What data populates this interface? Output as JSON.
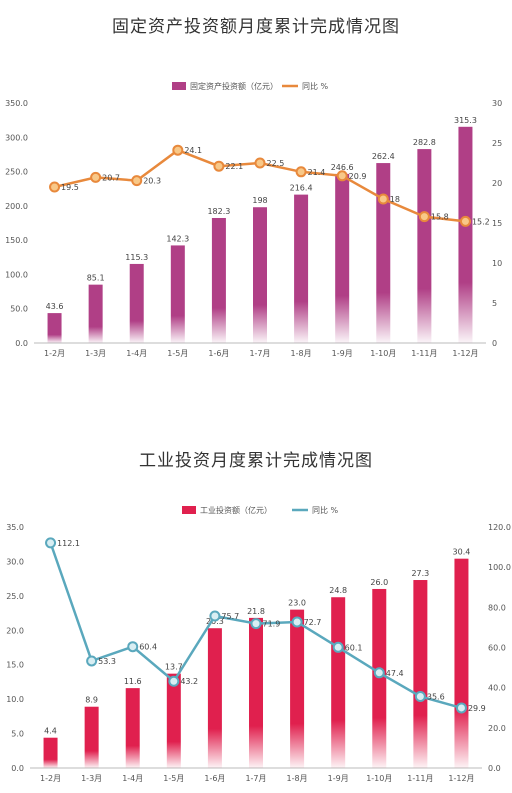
{
  "chart_data": [
    {
      "type": "bar",
      "title": "固定资产投资额月度累计完成情况图",
      "categories": [
        "1-2月",
        "1-3月",
        "1-4月",
        "1-5月",
        "1-6月",
        "1-7月",
        "1-8月",
        "1-9月",
        "1-10月",
        "1-11月",
        "1-12月"
      ],
      "series": [
        {
          "name": "固定资产投资额（亿元）",
          "type": "bar",
          "axis": "left",
          "color": "#b03f86",
          "values": [
            43.6,
            85.1,
            115.3,
            142.3,
            182.3,
            198,
            216.4,
            246.6,
            262.4,
            282.8,
            315.3
          ],
          "labels": [
            "43.6",
            "85.1",
            "115.3",
            "142.3",
            "182.3",
            "198",
            "216.4",
            "246.6",
            "262.4",
            "282.8",
            "315.3"
          ]
        },
        {
          "name": "同比 %",
          "type": "line",
          "axis": "right",
          "color": "#e8893c",
          "values": [
            19.5,
            20.7,
            20.3,
            24.1,
            22.1,
            22.5,
            21.4,
            20.9,
            18,
            15.8,
            15.2
          ],
          "labels": [
            "19.5",
            "20.7",
            "20.3",
            "24.1",
            "22.1",
            "22.5",
            "21.4",
            "20.9",
            "18",
            "15.8",
            "15.2"
          ]
        }
      ],
      "ylim_left": [
        0,
        350
      ],
      "yticks_left": [
        "0.0",
        "50.0",
        "100.0",
        "150.0",
        "200.0",
        "250.0",
        "300.0",
        "350.0"
      ],
      "ylim_right": [
        0,
        30
      ],
      "yticks_right": [
        "0",
        "5",
        "10",
        "15",
        "20",
        "25",
        "30"
      ],
      "legend_position": "top-center",
      "grid": false
    },
    {
      "type": "bar",
      "title": "工业投资月度累计完成情况图",
      "categories": [
        "1-2月",
        "1-3月",
        "1-4月",
        "1-5月",
        "1-6月",
        "1-7月",
        "1-8月",
        "1-9月",
        "1-10月",
        "1-11月",
        "1-12月"
      ],
      "series": [
        {
          "name": "工业投资额（亿元）",
          "type": "bar",
          "axis": "left",
          "color": "#e0204e",
          "values": [
            4.4,
            8.9,
            11.6,
            13.7,
            20.3,
            21.8,
            23.0,
            24.8,
            26.0,
            27.3,
            30.4
          ],
          "labels": [
            "4.4",
            "8.9",
            "11.6",
            "13.7",
            "20.3",
            "21.8",
            "23.0",
            "24.8",
            "26.0",
            "27.3",
            "30.4"
          ]
        },
        {
          "name": "同比 %",
          "type": "line",
          "axis": "right",
          "color": "#5aa8bd",
          "values": [
            112.1,
            53.3,
            60.4,
            43.2,
            75.7,
            71.9,
            72.7,
            60.1,
            47.4,
            35.6,
            29.9
          ],
          "labels": [
            "112.1",
            "53.3",
            "60.4",
            "43.2",
            "75.7",
            "71.9",
            "72.7",
            "60.1",
            "47.4",
            "35.6",
            "29.9"
          ]
        }
      ],
      "ylim_left": [
        0,
        35
      ],
      "yticks_left": [
        "0.0",
        "5.0",
        "10.0",
        "15.0",
        "20.0",
        "25.0",
        "30.0",
        "35.0"
      ],
      "ylim_right": [
        0,
        120
      ],
      "yticks_right": [
        "0.0",
        "20.0",
        "40.0",
        "60.0",
        "80.0",
        "100.0",
        "120.0"
      ],
      "legend_position": "top-center",
      "grid": false
    }
  ]
}
